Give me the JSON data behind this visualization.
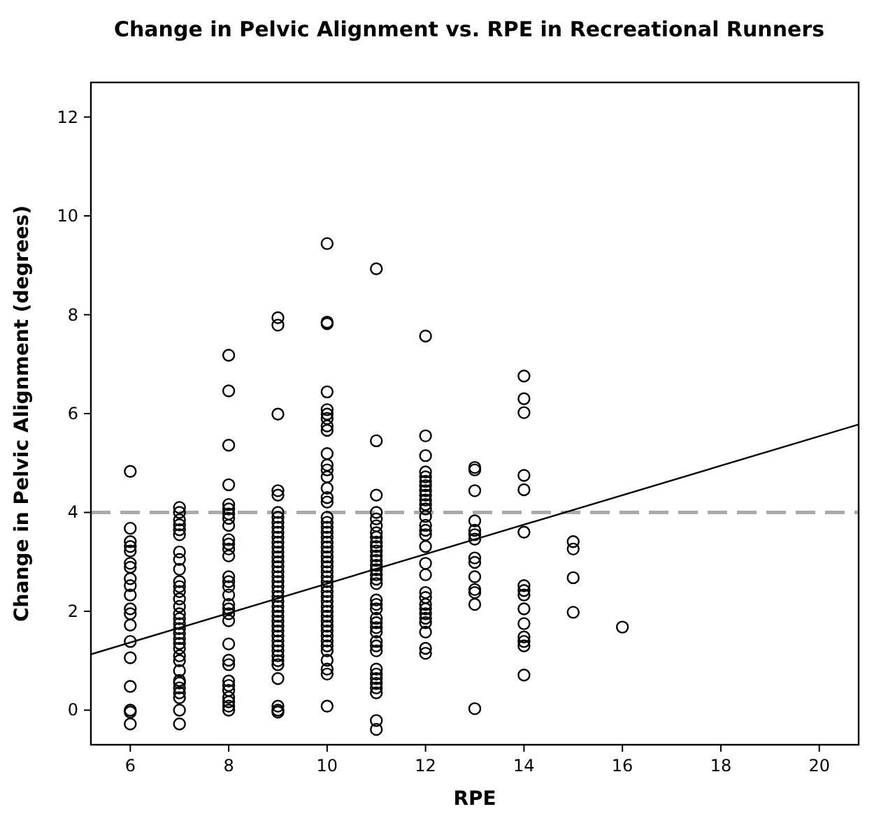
{
  "chart_data": {
    "type": "scatter",
    "title": "Change in Pelvic Alignment vs. RPE in Recreational Runners",
    "xlabel": "RPE",
    "ylabel": "Change in Pelvic Alignment (degrees)",
    "xlim": [
      5.2,
      20.8
    ],
    "ylim": [
      -0.7,
      12.7
    ],
    "xticks": [
      6,
      8,
      10,
      12,
      14,
      16,
      18,
      20
    ],
    "yticks": [
      0,
      2,
      4,
      6,
      8,
      10,
      12
    ],
    "grid": false,
    "ref_lines": [
      {
        "axis": "y",
        "value": 4,
        "color": "#aaaaaa",
        "line_style": "dashed"
      }
    ],
    "series": [
      {
        "color": "#000000",
        "marker": "circle",
        "x": [
          6,
          6,
          6,
          6,
          6,
          6,
          6,
          6,
          6,
          6,
          6,
          6,
          6,
          6,
          6,
          6,
          6,
          6,
          6,
          7,
          7,
          7,
          7,
          7,
          7,
          7,
          7,
          7,
          7,
          7,
          7,
          7,
          7,
          7,
          7,
          7,
          7,
          7,
          7,
          7,
          7,
          7,
          7,
          7,
          7,
          7,
          7,
          7,
          7,
          7,
          7,
          8,
          8,
          8,
          8,
          8,
          8,
          8,
          8,
          8,
          8,
          8,
          8,
          8,
          8,
          8,
          8,
          8,
          8,
          8,
          8,
          8,
          8,
          8,
          8,
          8,
          8,
          8,
          8,
          8,
          8,
          8,
          9,
          9,
          9,
          9,
          9,
          9,
          9,
          9,
          9,
          9,
          9,
          9,
          9,
          9,
          9,
          9,
          9,
          9,
          9,
          9,
          9,
          9,
          9,
          9,
          9,
          9,
          9,
          9,
          9,
          9,
          9,
          9,
          9,
          9,
          9,
          9,
          9,
          9,
          9,
          9,
          9,
          10,
          10,
          10,
          10,
          10,
          10,
          10,
          10,
          10,
          10,
          10,
          10,
          10,
          10,
          10,
          10,
          10,
          10,
          10,
          10,
          10,
          10,
          10,
          10,
          10,
          10,
          10,
          10,
          10,
          10,
          10,
          10,
          10,
          10,
          10,
          10,
          10,
          10,
          10,
          10,
          10,
          10,
          10,
          10,
          10,
          10,
          10,
          10,
          11,
          11,
          11,
          11,
          11,
          11,
          11,
          11,
          11,
          11,
          11,
          11,
          11,
          11,
          11,
          11,
          11,
          11,
          11,
          11,
          11,
          11,
          11,
          11,
          11,
          11,
          11,
          11,
          11,
          11,
          11,
          11,
          11,
          11,
          11,
          11,
          12,
          12,
          12,
          12,
          12,
          12,
          12,
          12,
          12,
          12,
          12,
          12,
          12,
          12,
          12,
          12,
          12,
          12,
          12,
          12,
          12,
          12,
          12,
          12,
          12,
          12,
          12,
          12,
          12,
          13,
          13,
          13,
          13,
          13,
          13,
          13,
          13,
          13,
          13,
          13,
          13,
          13,
          13,
          14,
          14,
          14,
          14,
          14,
          14,
          14,
          14,
          14,
          14,
          14,
          14,
          14,
          14,
          14,
          15,
          15,
          15,
          15,
          16
        ],
        "values": [
          4.83,
          3.68,
          3.41,
          3.31,
          3.22,
          2.97,
          2.89,
          2.66,
          2.52,
          2.33,
          2.05,
          1.95,
          1.72,
          1.39,
          1.06,
          0.48,
          0,
          -0.04,
          -0.28,
          4.1,
          4.0,
          3.85,
          3.75,
          3.65,
          3.55,
          3.2,
          3.05,
          2.85,
          2.6,
          2.5,
          2.4,
          2.25,
          2.1,
          1.95,
          1.85,
          1.75,
          1.65,
          1.55,
          1.45,
          1.35,
          1.25,
          1.1,
          1.0,
          0.8,
          0.6,
          0.55,
          0.45,
          0.35,
          0.25,
          0,
          -0.28,
          7.18,
          6.46,
          5.36,
          4.56,
          4.16,
          4.07,
          3.97,
          3.88,
          3.74,
          3.45,
          3.36,
          3.26,
          3.12,
          2.7,
          2.6,
          2.5,
          2.33,
          2.14,
          2.05,
          1.95,
          1.81,
          1.34,
          1.01,
          0.92,
          0.59,
          0.5,
          0.4,
          0.26,
          0.17,
          0.08,
          0,
          7.94,
          7.79,
          5.99,
          4.44,
          4.35,
          4.0,
          3.9,
          3.8,
          3.7,
          3.6,
          3.5,
          3.4,
          3.3,
          3.2,
          3.1,
          3.0,
          2.9,
          2.8,
          2.7,
          2.6,
          2.5,
          2.4,
          2.3,
          2.2,
          2.1,
          2.0,
          1.9,
          1.8,
          1.7,
          1.6,
          1.5,
          1.4,
          1.3,
          1.2,
          1.1,
          1.0,
          0.92,
          0.64,
          0.08,
          0,
          -0.04,
          9.44,
          7.85,
          7.82,
          6.44,
          6.08,
          5.99,
          5.9,
          5.75,
          5.66,
          5.19,
          4.96,
          4.86,
          4.72,
          4.49,
          4.3,
          4.21,
          3.9,
          3.8,
          3.7,
          3.6,
          3.5,
          3.4,
          3.3,
          3.2,
          3.1,
          3.0,
          2.9,
          2.8,
          2.7,
          2.6,
          2.5,
          2.4,
          2.3,
          2.2,
          2.1,
          2.0,
          1.9,
          1.8,
          1.7,
          1.6,
          1.5,
          1.4,
          1.3,
          1.2,
          1.01,
          0.83,
          0.73,
          0.08,
          8.93,
          5.45,
          4.35,
          4.0,
          3.87,
          3.73,
          3.59,
          3.5,
          3.4,
          3.31,
          3.22,
          3.12,
          3.03,
          2.93,
          2.84,
          2.74,
          2.65,
          2.56,
          2.23,
          2.14,
          2.05,
          1.86,
          1.77,
          1.67,
          1.58,
          1.39,
          1.3,
          1.2,
          0.83,
          0.73,
          0.64,
          0.54,
          0.45,
          0.35,
          -0.21,
          -0.39,
          7.57,
          5.55,
          5.15,
          4.82,
          4.72,
          4.63,
          4.54,
          4.44,
          4.35,
          4.25,
          4.16,
          4.07,
          3.92,
          3.74,
          3.64,
          3.55,
          3.31,
          2.97,
          2.74,
          2.38,
          2.28,
          2.14,
          2.05,
          1.95,
          1.86,
          1.77,
          1.58,
          1.25,
          1.15,
          4.91,
          4.86,
          4.44,
          3.83,
          3.64,
          3.55,
          3.46,
          3.08,
          2.99,
          2.7,
          2.44,
          2.38,
          2.14,
          0.03,
          6.76,
          6.3,
          6.02,
          4.75,
          4.46,
          3.6,
          2.52,
          2.42,
          2.33,
          2.05,
          1.75,
          1.48,
          1.39,
          1.3,
          0.71,
          3.41,
          3.26,
          2.68,
          1.98,
          1.68
        ]
      },
      {
        "type": "line",
        "color": "#000000",
        "x": [
          5.2,
          20.8
        ],
        "values": [
          1.13,
          5.78
        ],
        "marker": "none"
      }
    ]
  }
}
